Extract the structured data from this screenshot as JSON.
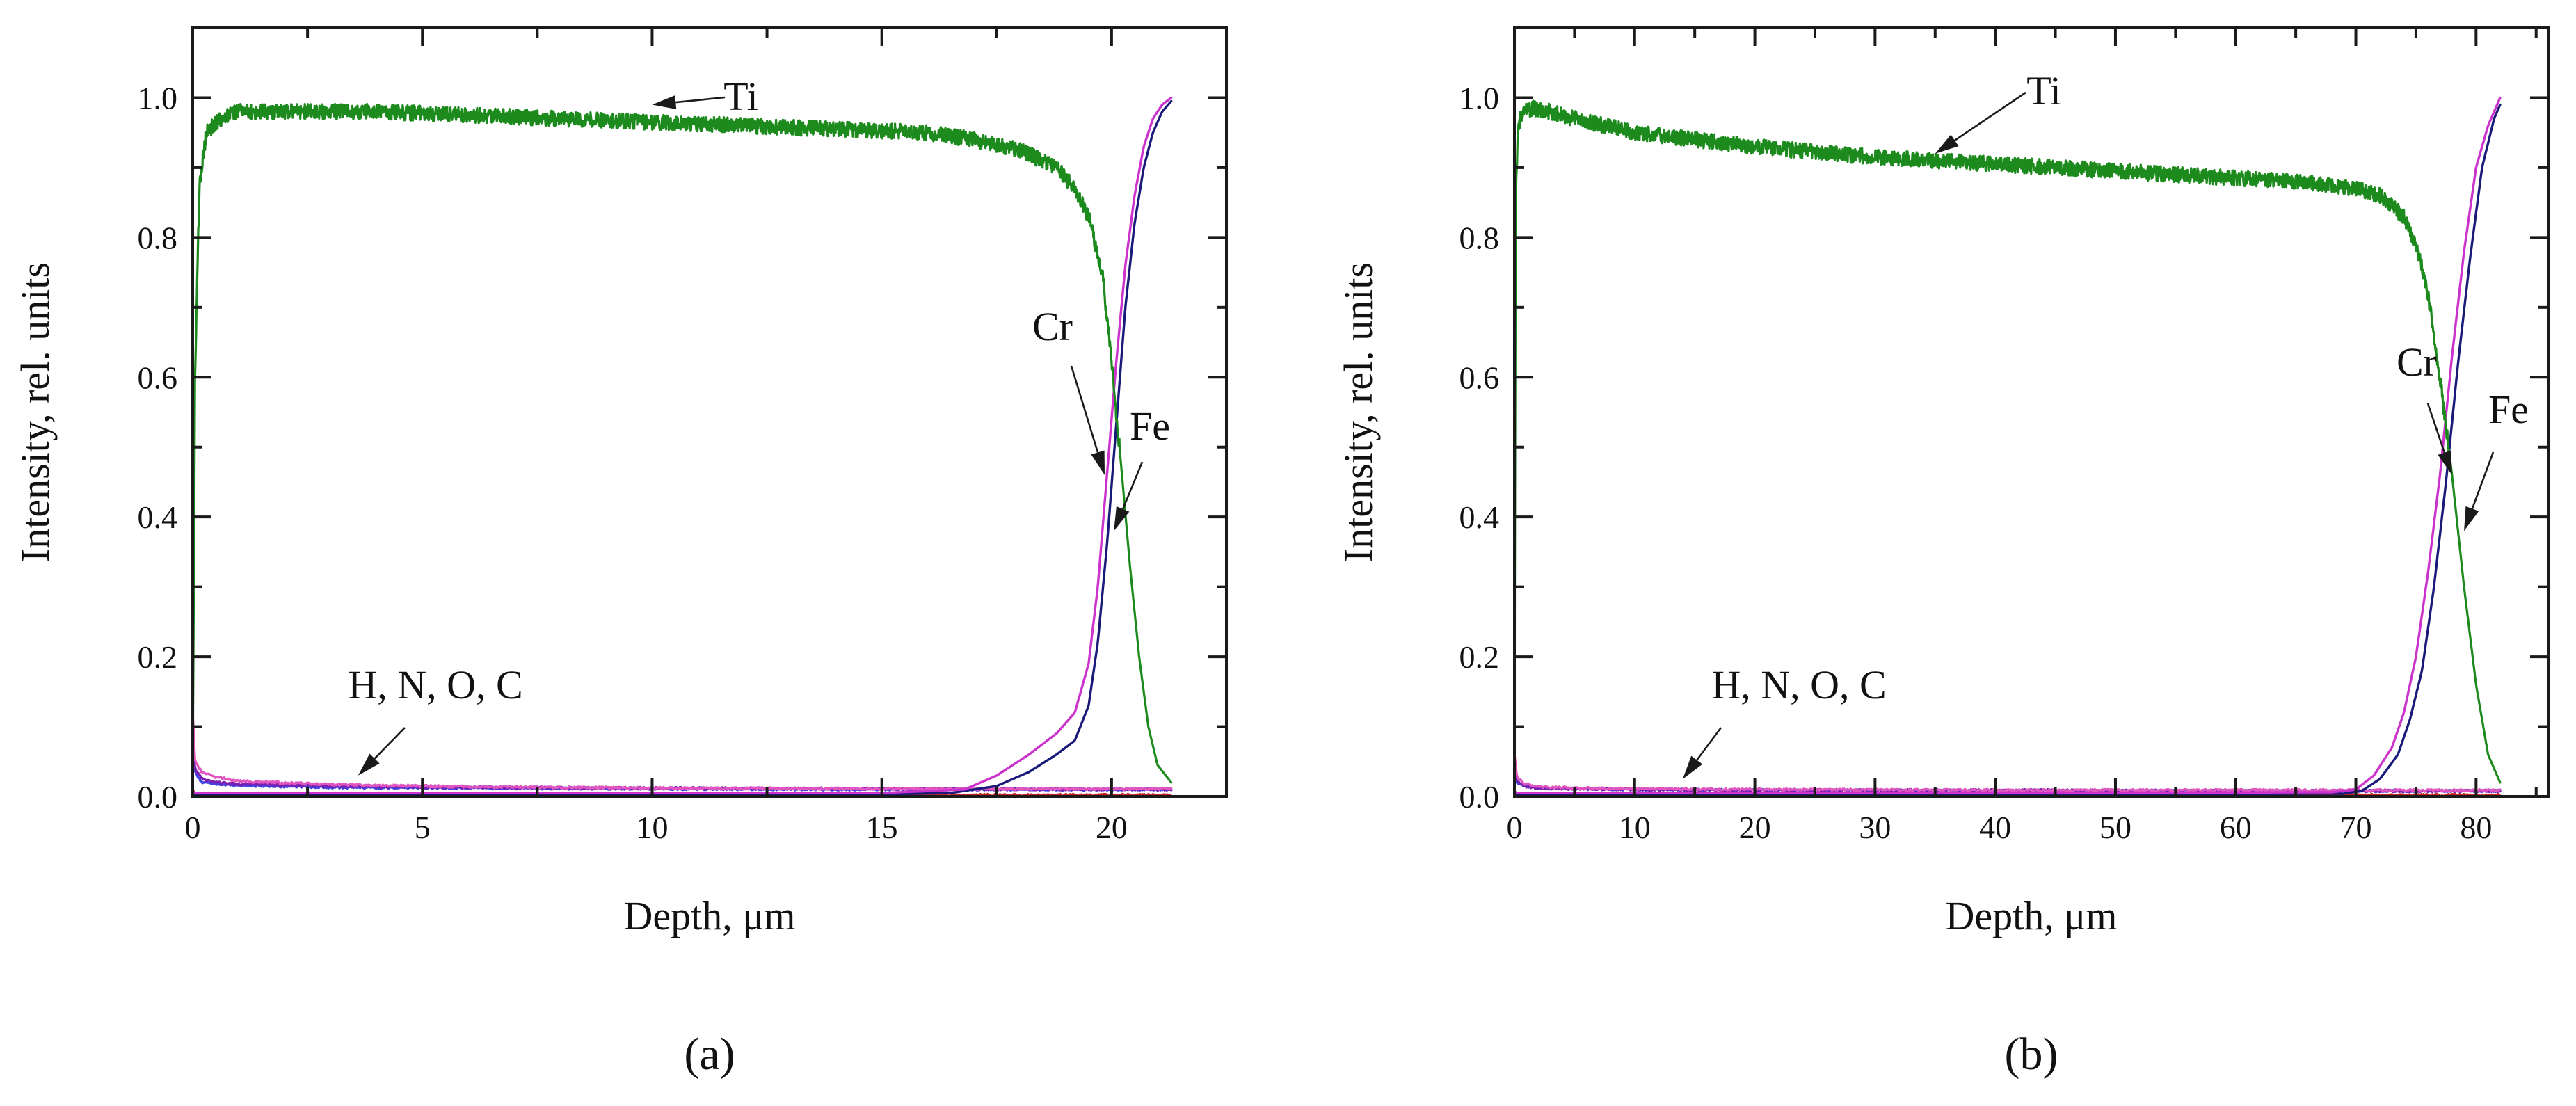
{
  "figure_labels": [
    "(a)",
    "(b)"
  ],
  "colors": {
    "Ti": "#1c8a1c",
    "Cr": "#cc33cc",
    "Fe": "#1a1a7a",
    "H": "#4040e0",
    "N": "#d02020",
    "O": "#7a1fb0",
    "C": "#e055c0",
    "axis": "#1a1a1a"
  },
  "chart_data": [
    {
      "type": "line",
      "panel_label": "(a)",
      "xlabel": "Depth, μm",
      "ylabel": "Intensity, rel. units",
      "xlim": [
        0,
        22.5
      ],
      "ylim": [
        0,
        1.1
      ],
      "xticks": [
        0,
        5,
        10,
        15,
        20
      ],
      "xtick_labels": [
        "0",
        "5",
        "10",
        "15",
        "20"
      ],
      "yticks": [
        0,
        0.2,
        0.4,
        0.6,
        0.8,
        1.0
      ],
      "ytick_labels": [
        "0.0",
        "0.2",
        "0.4",
        "0.6",
        "0.8",
        "1.0"
      ],
      "annotations": [
        {
          "text": "Ti",
          "points_to": [
            10.0,
            0.99
          ]
        },
        {
          "text": "Cr",
          "points_to": [
            19.85,
            0.46
          ]
        },
        {
          "text": "Fe",
          "points_to": [
            20.05,
            0.38
          ]
        },
        {
          "text": "H, N, O, C",
          "points_to": [
            3.6,
            0.03
          ]
        }
      ],
      "series": [
        {
          "name": "Ti",
          "x": [
            0,
            0.05,
            0.15,
            0.3,
            0.6,
            1,
            2,
            4,
            6,
            8,
            10,
            12,
            14,
            16,
            17,
            18,
            18.8,
            19.2,
            19.5,
            19.8,
            20.0,
            20.2,
            20.4,
            20.6,
            20.8,
            21.0,
            21.3
          ],
          "y": [
            0.02,
            0.6,
            0.88,
            0.95,
            0.97,
            0.98,
            0.98,
            0.98,
            0.975,
            0.97,
            0.965,
            0.96,
            0.955,
            0.95,
            0.94,
            0.925,
            0.9,
            0.87,
            0.83,
            0.75,
            0.62,
            0.48,
            0.33,
            0.2,
            0.1,
            0.045,
            0.02
          ]
        },
        {
          "name": "Cr",
          "x": [
            0,
            2,
            5,
            10,
            15,
            16.8,
            17.5,
            18.2,
            18.8,
            19.2,
            19.5,
            19.7,
            19.9,
            20.1,
            20.3,
            20.5,
            20.7,
            20.9,
            21.1,
            21.3
          ],
          "y": [
            0.005,
            0.005,
            0.005,
            0.005,
            0.005,
            0.01,
            0.03,
            0.06,
            0.09,
            0.12,
            0.19,
            0.3,
            0.46,
            0.62,
            0.76,
            0.86,
            0.93,
            0.97,
            0.99,
            1.0
          ]
        },
        {
          "name": "Fe",
          "x": [
            0,
            2,
            5,
            10,
            15,
            16.5,
            17.5,
            18.2,
            18.8,
            19.2,
            19.5,
            19.7,
            19.9,
            20.1,
            20.3,
            20.5,
            20.7,
            20.9,
            21.1,
            21.3
          ],
          "y": [
            0.003,
            0.003,
            0.003,
            0.003,
            0.003,
            0.005,
            0.015,
            0.035,
            0.06,
            0.08,
            0.13,
            0.22,
            0.36,
            0.53,
            0.7,
            0.82,
            0.9,
            0.95,
            0.98,
            0.995
          ]
        },
        {
          "name": "H",
          "x": [
            0,
            0.05,
            0.2,
            0.5,
            1,
            3,
            6,
            10,
            15,
            21.3
          ],
          "y": [
            0.06,
            0.035,
            0.02,
            0.018,
            0.016,
            0.013,
            0.012,
            0.011,
            0.01,
            0.01
          ]
        },
        {
          "name": "N",
          "x": [
            0,
            0.05,
            0.3,
            1,
            5,
            10,
            15,
            21.3
          ],
          "y": [
            0.01,
            0.004,
            0.003,
            0.002,
            0.002,
            0.002,
            0.002,
            0.002
          ]
        },
        {
          "name": "O",
          "x": [
            0,
            0.05,
            0.2,
            0.5,
            1,
            3,
            6,
            10,
            15,
            21.3
          ],
          "y": [
            0.09,
            0.04,
            0.025,
            0.02,
            0.018,
            0.015,
            0.013,
            0.012,
            0.011,
            0.01
          ]
        },
        {
          "name": "C",
          "x": [
            0,
            0.05,
            0.2,
            0.5,
            1,
            3,
            6,
            10,
            15,
            21.3
          ],
          "y": [
            0.12,
            0.05,
            0.035,
            0.028,
            0.022,
            0.017,
            0.014,
            0.012,
            0.011,
            0.011
          ]
        }
      ]
    },
    {
      "type": "line",
      "panel_label": "(b)",
      "xlabel": "Depth, μm",
      "ylabel": "Intensity, rel. units",
      "xlim": [
        0,
        86
      ],
      "ylim": [
        0,
        1.1
      ],
      "xticks": [
        0,
        10,
        20,
        30,
        40,
        50,
        60,
        70,
        80
      ],
      "xtick_labels": [
        "0",
        "10",
        "20",
        "30",
        "40",
        "50",
        "60",
        "70",
        "80"
      ],
      "yticks": [
        0,
        0.2,
        0.4,
        0.6,
        0.8,
        1.0
      ],
      "ytick_labels": [
        "0.0",
        "0.2",
        "0.4",
        "0.6",
        "0.8",
        "1.0"
      ],
      "annotations": [
        {
          "text": "Ti",
          "points_to": [
            35.0,
            0.92
          ]
        },
        {
          "text": "Cr",
          "points_to": [
            78.0,
            0.46
          ]
        },
        {
          "text": "Fe",
          "points_to": [
            79.0,
            0.38
          ]
        },
        {
          "text": "H, N, O, C",
          "points_to": [
            14.0,
            0.025
          ]
        }
      ],
      "series": [
        {
          "name": "Ti",
          "x": [
            0,
            0.1,
            0.3,
            0.7,
            1.5,
            3,
            5,
            10,
            20,
            30,
            40,
            50,
            60,
            65,
            68,
            70,
            72,
            74,
            75,
            76,
            77,
            78,
            79,
            80,
            81,
            82
          ],
          "y": [
            0.02,
            0.85,
            0.96,
            0.98,
            0.985,
            0.98,
            0.97,
            0.95,
            0.93,
            0.915,
            0.905,
            0.895,
            0.885,
            0.88,
            0.875,
            0.87,
            0.86,
            0.83,
            0.79,
            0.72,
            0.6,
            0.46,
            0.3,
            0.16,
            0.06,
            0.02
          ]
        },
        {
          "name": "Cr",
          "x": [
            0,
            10,
            30,
            50,
            68,
            70,
            71.5,
            73,
            74,
            75,
            76,
            77,
            78,
            79,
            80,
            81,
            82
          ],
          "y": [
            0.005,
            0.005,
            0.005,
            0.005,
            0.006,
            0.01,
            0.03,
            0.07,
            0.12,
            0.2,
            0.32,
            0.46,
            0.63,
            0.78,
            0.9,
            0.96,
            1.0
          ]
        },
        {
          "name": "Fe",
          "x": [
            0,
            10,
            30,
            50,
            69,
            70.5,
            72,
            73.5,
            74.5,
            75.5,
            76.5,
            77.5,
            78.5,
            79.5,
            80.5,
            81.5,
            82
          ],
          "y": [
            0.003,
            0.003,
            0.003,
            0.003,
            0.004,
            0.008,
            0.025,
            0.06,
            0.11,
            0.18,
            0.3,
            0.45,
            0.62,
            0.77,
            0.9,
            0.97,
            0.99
          ]
        },
        {
          "name": "H",
          "x": [
            0,
            0.2,
            0.8,
            2,
            5,
            10,
            20,
            40,
            60,
            82
          ],
          "y": [
            0.035,
            0.02,
            0.015,
            0.012,
            0.011,
            0.01,
            0.009,
            0.008,
            0.008,
            0.008
          ]
        },
        {
          "name": "N",
          "x": [
            0,
            0.3,
            1,
            10,
            40,
            82
          ],
          "y": [
            0.008,
            0.003,
            0.002,
            0.002,
            0.002,
            0.002
          ]
        },
        {
          "name": "O",
          "x": [
            0,
            0.2,
            0.8,
            2,
            5,
            10,
            20,
            40,
            60,
            82
          ],
          "y": [
            0.045,
            0.022,
            0.015,
            0.012,
            0.011,
            0.01,
            0.009,
            0.009,
            0.008,
            0.008
          ]
        },
        {
          "name": "C",
          "x": [
            0,
            0.2,
            0.8,
            2,
            5,
            10,
            20,
            40,
            60,
            82
          ],
          "y": [
            0.06,
            0.028,
            0.018,
            0.014,
            0.012,
            0.011,
            0.01,
            0.009,
            0.009,
            0.009
          ]
        }
      ]
    }
  ]
}
